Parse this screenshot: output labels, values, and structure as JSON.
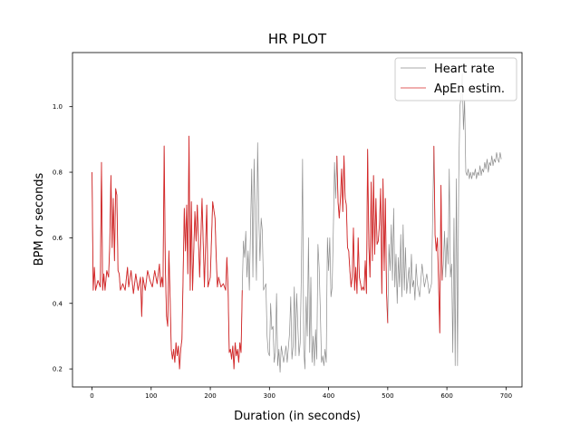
{
  "chart_data": {
    "type": "line",
    "title": "HR PLOT",
    "xlabel": "Duration (in seconds)",
    "ylabel": "BPM or seconds",
    "xlim": [
      -33,
      727
    ],
    "ylim": [
      0.145,
      1.165
    ],
    "xticks": [
      0,
      100,
      200,
      300,
      400,
      500,
      600,
      700
    ],
    "yticks": [
      0.2,
      0.4,
      0.6,
      0.8,
      1.0
    ],
    "ytick_labels": [
      "0.2",
      "0.4",
      "0.6",
      "0.8",
      "1.0"
    ],
    "grid": false,
    "legend_position": "top-right",
    "series": [
      {
        "name": "Heart rate",
        "color": "#8c8c8c",
        "points": [
          [
            0,
            0.8
          ],
          [
            2,
            0.44
          ],
          [
            4,
            0.51
          ],
          [
            6,
            0.44
          ],
          [
            10,
            0.47
          ],
          [
            14,
            0.45
          ],
          [
            16,
            0.83
          ],
          [
            18,
            0.44
          ],
          [
            20,
            0.49
          ],
          [
            22,
            0.44
          ],
          [
            25,
            0.5
          ],
          [
            28,
            0.48
          ],
          [
            30,
            0.58
          ],
          [
            32,
            0.79
          ],
          [
            34,
            0.57
          ],
          [
            36,
            0.72
          ],
          [
            38,
            0.53
          ],
          [
            40,
            0.75
          ],
          [
            42,
            0.73
          ],
          [
            44,
            0.5
          ],
          [
            46,
            0.49
          ],
          [
            48,
            0.44
          ],
          [
            52,
            0.46
          ],
          [
            56,
            0.44
          ],
          [
            60,
            0.51
          ],
          [
            62,
            0.45
          ],
          [
            66,
            0.5
          ],
          [
            70,
            0.43
          ],
          [
            74,
            0.49
          ],
          [
            78,
            0.44
          ],
          [
            82,
            0.48
          ],
          [
            84,
            0.36
          ],
          [
            86,
            0.48
          ],
          [
            90,
            0.44
          ],
          [
            94,
            0.5
          ],
          [
            98,
            0.47
          ],
          [
            102,
            0.45
          ],
          [
            106,
            0.5
          ],
          [
            110,
            0.46
          ],
          [
            114,
            0.52
          ],
          [
            116,
            0.45
          ],
          [
            118,
            0.48
          ],
          [
            120,
            0.45
          ],
          [
            122,
            0.88
          ],
          [
            124,
            0.51
          ],
          [
            126,
            0.36
          ],
          [
            128,
            0.33
          ],
          [
            130,
            0.56
          ],
          [
            132,
            0.42
          ],
          [
            134,
            0.26
          ],
          [
            136,
            0.23
          ],
          [
            138,
            0.26
          ],
          [
            140,
            0.22
          ],
          [
            142,
            0.28
          ],
          [
            144,
            0.24
          ],
          [
            146,
            0.27
          ],
          [
            148,
            0.2
          ],
          [
            150,
            0.26
          ],
          [
            152,
            0.29
          ],
          [
            154,
            0.48
          ],
          [
            156,
            0.69
          ],
          [
            158,
            0.56
          ],
          [
            160,
            0.7
          ],
          [
            162,
            0.49
          ],
          [
            164,
            0.91
          ],
          [
            166,
            0.44
          ],
          [
            168,
            0.71
          ],
          [
            170,
            0.44
          ],
          [
            174,
            0.68
          ],
          [
            176,
            0.59
          ],
          [
            178,
            0.7
          ],
          [
            182,
            0.48
          ],
          [
            186,
            0.72
          ],
          [
            190,
            0.45
          ],
          [
            194,
            0.7
          ],
          [
            196,
            0.45
          ],
          [
            200,
            0.48
          ],
          [
            204,
            0.71
          ],
          [
            208,
            0.66
          ],
          [
            210,
            0.54
          ],
          [
            212,
            0.45
          ],
          [
            214,
            0.48
          ],
          [
            218,
            0.45
          ],
          [
            222,
            0.46
          ],
          [
            226,
            0.44
          ],
          [
            228,
            0.54
          ],
          [
            230,
            0.45
          ],
          [
            232,
            0.25
          ],
          [
            234,
            0.26
          ],
          [
            236,
            0.23
          ],
          [
            238,
            0.27
          ],
          [
            240,
            0.2
          ],
          [
            242,
            0.28
          ],
          [
            244,
            0.24
          ],
          [
            246,
            0.26
          ],
          [
            248,
            0.22
          ],
          [
            250,
            0.28
          ],
          [
            252,
            0.25
          ],
          [
            254,
            0.44
          ],
          [
            256,
            0.59
          ],
          [
            258,
            0.54
          ],
          [
            260,
            0.62
          ],
          [
            262,
            0.48
          ],
          [
            264,
            0.56
          ],
          [
            266,
            0.44
          ],
          [
            270,
            0.81
          ],
          [
            272,
            0.48
          ],
          [
            274,
            0.84
          ],
          [
            278,
            0.47
          ],
          [
            280,
            0.89
          ],
          [
            282,
            0.66
          ],
          [
            284,
            0.53
          ],
          [
            286,
            0.66
          ],
          [
            288,
            0.62
          ],
          [
            290,
            0.44
          ],
          [
            294,
            0.46
          ],
          [
            296,
            0.3
          ],
          [
            298,
            0.25
          ],
          [
            300,
            0.24
          ],
          [
            302,
            0.4
          ],
          [
            304,
            0.32
          ],
          [
            306,
            0.33
          ],
          [
            308,
            0.22
          ],
          [
            310,
            0.25
          ],
          [
            312,
            0.43
          ],
          [
            314,
            0.21
          ],
          [
            316,
            0.26
          ],
          [
            318,
            0.19
          ],
          [
            320,
            0.27
          ],
          [
            324,
            0.22
          ],
          [
            328,
            0.27
          ],
          [
            330,
            0.22
          ],
          [
            334,
            0.31
          ],
          [
            336,
            0.42
          ],
          [
            338,
            0.23
          ],
          [
            340,
            0.27
          ],
          [
            342,
            0.45
          ],
          [
            344,
            0.24
          ],
          [
            346,
            0.43
          ],
          [
            348,
            0.33
          ],
          [
            350,
            0.24
          ],
          [
            352,
            0.28
          ],
          [
            354,
            0.5
          ],
          [
            356,
            0.84
          ],
          [
            358,
            0.26
          ],
          [
            360,
            0.2
          ],
          [
            362,
            0.42
          ],
          [
            364,
            0.3
          ],
          [
            366,
            0.6
          ],
          [
            368,
            0.25
          ],
          [
            370,
            0.48
          ],
          [
            372,
            0.22
          ],
          [
            374,
            0.3
          ],
          [
            376,
            0.21
          ],
          [
            378,
            0.32
          ],
          [
            380,
            0.23
          ],
          [
            382,
            0.58
          ],
          [
            384,
            0.51
          ],
          [
            386,
            0.38
          ],
          [
            388,
            0.22
          ],
          [
            390,
            0.24
          ],
          [
            392,
            0.21
          ],
          [
            394,
            0.26
          ],
          [
            396,
            0.22
          ],
          [
            398,
            0.6
          ],
          [
            400,
            0.5
          ],
          [
            402,
            0.6
          ],
          [
            404,
            0.42
          ],
          [
            406,
            0.45
          ],
          [
            408,
            0.62
          ],
          [
            410,
            0.83
          ],
          [
            412,
            0.72
          ],
          [
            414,
            0.85
          ],
          [
            416,
            0.71
          ],
          [
            418,
            0.66
          ],
          [
            420,
            0.72
          ],
          [
            422,
            0.81
          ],
          [
            424,
            0.68
          ],
          [
            426,
            0.85
          ],
          [
            428,
            0.72
          ],
          [
            430,
            0.7
          ],
          [
            432,
            0.57
          ],
          [
            434,
            0.56
          ],
          [
            436,
            0.5
          ],
          [
            438,
            0.45
          ],
          [
            440,
            0.48
          ],
          [
            442,
            0.63
          ],
          [
            444,
            0.44
          ],
          [
            446,
            0.51
          ],
          [
            448,
            0.43
          ],
          [
            450,
            0.6
          ],
          [
            452,
            0.48
          ],
          [
            454,
            0.46
          ],
          [
            456,
            0.44
          ],
          [
            458,
            0.45
          ],
          [
            460,
            0.44
          ],
          [
            462,
            0.53
          ],
          [
            464,
            0.43
          ],
          [
            466,
            0.87
          ],
          [
            468,
            0.58
          ],
          [
            470,
            0.48
          ],
          [
            472,
            0.77
          ],
          [
            474,
            0.53
          ],
          [
            476,
            0.79
          ],
          [
            478,
            0.55
          ],
          [
            480,
            0.72
          ],
          [
            482,
            0.58
          ],
          [
            484,
            0.59
          ],
          [
            486,
            0.64
          ],
          [
            488,
            0.75
          ],
          [
            490,
            0.43
          ],
          [
            492,
            0.78
          ],
          [
            494,
            0.5
          ],
          [
            496,
            0.72
          ],
          [
            498,
            0.43
          ],
          [
            500,
            0.34
          ],
          [
            502,
            0.58
          ],
          [
            504,
            0.5
          ],
          [
            506,
            0.64
          ],
          [
            508,
            0.47
          ],
          [
            510,
            0.69
          ],
          [
            512,
            0.45
          ],
          [
            514,
            0.55
          ],
          [
            516,
            0.4
          ],
          [
            518,
            0.54
          ],
          [
            520,
            0.45
          ],
          [
            522,
            0.61
          ],
          [
            524,
            0.42
          ],
          [
            526,
            0.64
          ],
          [
            528,
            0.44
          ],
          [
            530,
            0.57
          ],
          [
            532,
            0.43
          ],
          [
            534,
            0.47
          ],
          [
            536,
            0.51
          ],
          [
            538,
            0.43
          ],
          [
            540,
            0.55
          ],
          [
            542,
            0.45
          ],
          [
            544,
            0.47
          ],
          [
            546,
            0.41
          ],
          [
            548,
            0.52
          ],
          [
            550,
            0.46
          ],
          [
            554,
            0.42
          ],
          [
            558,
            0.52
          ],
          [
            562,
            0.45
          ],
          [
            566,
            0.49
          ],
          [
            570,
            0.43
          ],
          [
            574,
            0.46
          ],
          [
            578,
            0.88
          ],
          [
            580,
            0.61
          ],
          [
            582,
            0.56
          ],
          [
            584,
            0.6
          ],
          [
            586,
            0.46
          ],
          [
            588,
            0.31
          ],
          [
            590,
            0.76
          ],
          [
            592,
            0.47
          ],
          [
            594,
            0.52
          ],
          [
            596,
            0.62
          ],
          [
            598,
            0.48
          ],
          [
            600,
            0.6
          ],
          [
            602,
            0.52
          ],
          [
            604,
            0.81
          ],
          [
            606,
            0.48
          ],
          [
            608,
            0.52
          ],
          [
            610,
            0.25
          ],
          [
            612,
            0.66
          ],
          [
            614,
            0.21
          ],
          [
            616,
            0.78
          ],
          [
            618,
            0.21
          ],
          [
            620,
            0.78
          ],
          [
            622,
            1.0
          ],
          [
            624,
            1.03
          ],
          [
            626,
            1.1
          ],
          [
            628,
            0.93
          ],
          [
            630,
            1.02
          ],
          [
            632,
            0.8
          ],
          [
            634,
            0.79
          ],
          [
            636,
            0.81
          ],
          [
            638,
            0.78
          ],
          [
            640,
            0.8
          ],
          [
            642,
            0.78
          ],
          [
            644,
            0.8
          ],
          [
            646,
            0.79
          ],
          [
            648,
            0.81
          ],
          [
            650,
            0.78
          ],
          [
            652,
            0.8
          ],
          [
            654,
            0.79
          ],
          [
            656,
            0.82
          ],
          [
            658,
            0.79
          ],
          [
            660,
            0.81
          ],
          [
            662,
            0.8
          ],
          [
            664,
            0.83
          ],
          [
            666,
            0.81
          ],
          [
            668,
            0.84
          ],
          [
            670,
            0.8
          ],
          [
            672,
            0.83
          ],
          [
            674,
            0.82
          ],
          [
            676,
            0.85
          ],
          [
            678,
            0.82
          ],
          [
            680,
            0.84
          ],
          [
            682,
            0.83
          ],
          [
            684,
            0.86
          ],
          [
            686,
            0.84
          ],
          [
            688,
            0.83
          ],
          [
            690,
            0.86
          ],
          [
            692,
            0.84
          ]
        ]
      },
      {
        "name": "ApEn estim.",
        "color": "#d62728",
        "x_ranges": [
          [
            0,
            254
          ],
          [
            414,
            500
          ],
          [
            578,
            592
          ]
        ]
      }
    ]
  }
}
